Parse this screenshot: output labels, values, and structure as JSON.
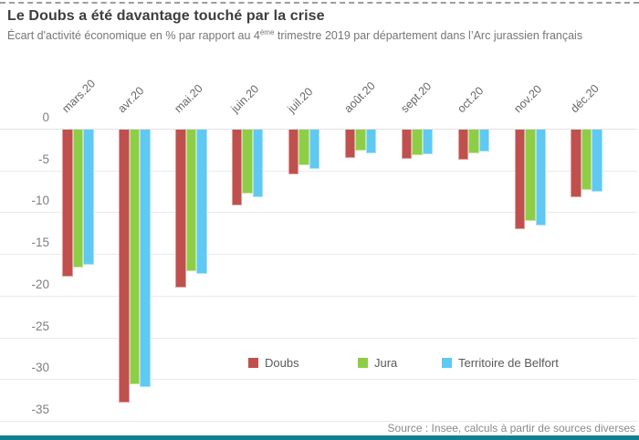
{
  "header": {
    "title": "Le Doubs a été davantage touché par la crise",
    "subtitle_part1": "Écart d'activité économique en % par rapport au 4",
    "subtitle_sup": "ème",
    "subtitle_part2": " trimestre 2019 par département dans l’Arc jurassien français"
  },
  "source_note": "Source : Insee, calculs à partir de sources diverses",
  "colors": {
    "doubs": "#c0504d",
    "jura": "#8dce46",
    "territoire_de_belfort": "#5fc9f2",
    "accent_footer": "#0e8290",
    "grid": "#e9e9e9",
    "axis_text": "#7f7f7f",
    "title_text": "#3d3d3d"
  },
  "chart_data": {
    "type": "bar",
    "title": "Le Doubs a été davantage touché par la crise",
    "subtitle": "Écart d'activité économique en % par rapport au 4ème trimestre 2019 par département dans l'Arc jurassien français",
    "categories": [
      "mars.20",
      "avr.20",
      "mai.20",
      "juin.20",
      "juil.20",
      "août.20",
      "sept.20",
      "oct.20",
      "nov.20",
      "déc.20"
    ],
    "series": [
      {
        "name": "Doubs",
        "color": "#c0504d",
        "values": [
          -17.6,
          -32.7,
          -18.9,
          -9.1,
          -5.4,
          -3.4,
          -3.5,
          -3.6,
          -11.9,
          -8.1
        ]
      },
      {
        "name": "Jura",
        "color": "#8dce46",
        "values": [
          -16.5,
          -30.5,
          -16.9,
          -7.6,
          -4.3,
          -2.5,
          -3.1,
          -2.8,
          -10.9,
          -7.2
        ]
      },
      {
        "name": "Territoire de Belfort",
        "color": "#5fc9f2",
        "values": [
          -16.2,
          -30.8,
          -17.3,
          -8.1,
          -4.7,
          -2.8,
          -3.0,
          -2.6,
          -11.5,
          -7.4
        ]
      }
    ],
    "ylabel": "",
    "xlabel": "",
    "ylim": [
      -35,
      0
    ],
    "yticks": [
      0,
      -5,
      -10,
      -15,
      -20,
      -25,
      -30,
      -35
    ],
    "grid": true,
    "legend_position": "inside-bottom"
  }
}
